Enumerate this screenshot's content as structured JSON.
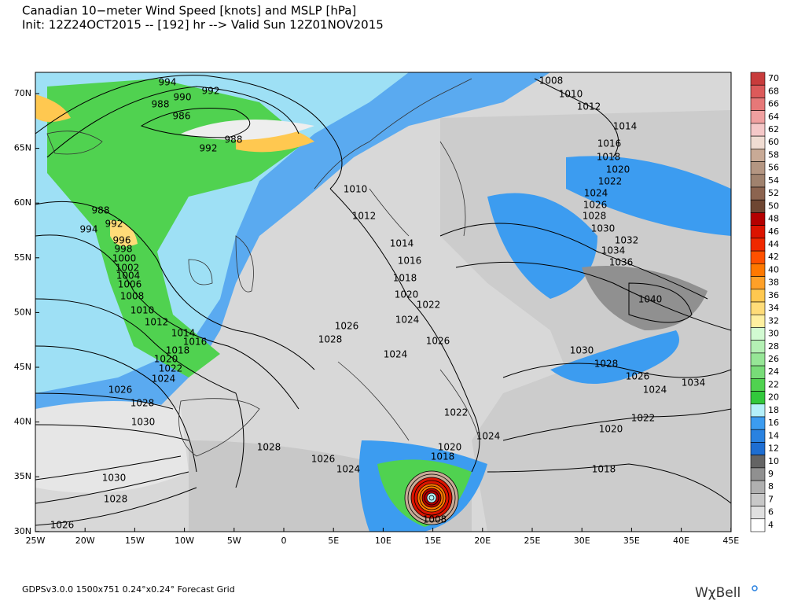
{
  "header": {
    "title": "Canadian 10−meter Wind Speed [knots] and MSLP [hPa]",
    "subtitle": "Init: 12Z24OCT2015 -- [192] hr --> Valid Sun 12Z01NOV2015"
  },
  "map": {
    "lat_labels": [
      "70N",
      "65N",
      "60N",
      "55N",
      "50N",
      "45N",
      "40N",
      "35N",
      "30N"
    ],
    "lon_labels": [
      "25W",
      "20W",
      "15W",
      "10W",
      "5W",
      "0",
      "5E",
      "10E",
      "15E",
      "20E",
      "25E",
      "30E",
      "35E",
      "40E",
      "45E"
    ],
    "isobar_labels": [
      "994",
      "992",
      "990",
      "988",
      "986",
      "988",
      "992",
      "988",
      "992",
      "994",
      "996",
      "998",
      "1000",
      "1002",
      "1004",
      "1006",
      "1008",
      "1010",
      "1012",
      "1014",
      "1016",
      "1018",
      "1020",
      "1022",
      "1024",
      "1026",
      "1028",
      "1030",
      "1028",
      "1026",
      "1024",
      "1030",
      "1028",
      "1026",
      "1008",
      "1010",
      "1012",
      "1014",
      "1016",
      "1018",
      "1020",
      "1022",
      "1024",
      "1026",
      "1028",
      "1030",
      "1032",
      "1034",
      "1036",
      "1040",
      "1010",
      "1012",
      "1014",
      "1016",
      "1018",
      "1020",
      "1022",
      "1024",
      "1026",
      "1028",
      "1026",
      "1024",
      "1030",
      "1028",
      "1026",
      "1024",
      "1034",
      "1022",
      "1020",
      "1022",
      "1024",
      "1020",
      "1018",
      "1018",
      "1008"
    ]
  },
  "colorbar": {
    "labels": [
      "70",
      "68",
      "66",
      "64",
      "62",
      "60",
      "58",
      "56",
      "54",
      "52",
      "50",
      "48",
      "46",
      "44",
      "42",
      "40",
      "38",
      "36",
      "34",
      "32",
      "30",
      "28",
      "26",
      "24",
      "22",
      "20",
      "18",
      "16",
      "14",
      "12",
      "10",
      "9",
      "8",
      "7",
      "6",
      "4"
    ],
    "colors": [
      "#c83c3c",
      "#dc5a5a",
      "#e67878",
      "#f0a0a0",
      "#f5c8c8",
      "#f0dcd2",
      "#c8aa96",
      "#b49682",
      "#a0826e",
      "#8c6450",
      "#6e4632",
      "#b40000",
      "#dc1400",
      "#f02800",
      "#ff5000",
      "#ff7800",
      "#ffa028",
      "#ffc850",
      "#ffdc78",
      "#fff0a0",
      "#d2fad2",
      "#b4f0b4",
      "#96e696",
      "#78dc78",
      "#50d250",
      "#32c83c",
      "#b4f0fa",
      "#3c9cf0",
      "#2a82e0",
      "#1e6ed2",
      "#646464",
      "#909090",
      "#b0b0b0",
      "#c8c8c8",
      "#e0e0e0",
      "#ffffff"
    ]
  },
  "footer": {
    "grid": "GDPSv3.0.0 1500x751 0.24°x0.24° Forecast Grid",
    "logo": "WχBell"
  }
}
